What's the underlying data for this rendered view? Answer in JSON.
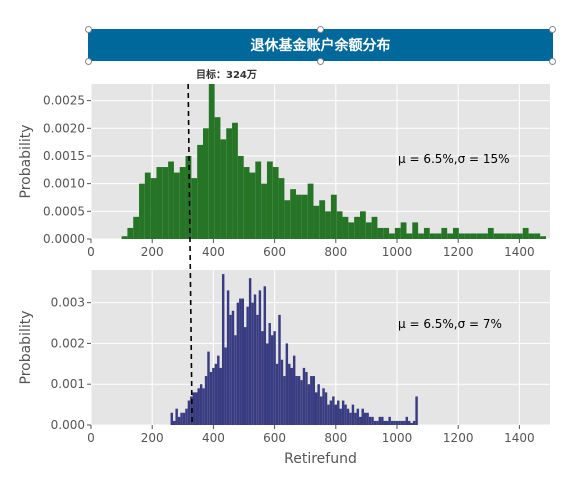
{
  "banner": {
    "title": "退休基金账户余额分布"
  },
  "target_note": "目标：324万",
  "colors": {
    "banner": "#00689a",
    "top_bars": "#267426",
    "bottom_bars": "#3a3c82",
    "plot_bg": "#e5e5e5",
    "target_line": "#000000"
  },
  "chart_data": [
    {
      "type": "bar",
      "title": "",
      "xlabel": "",
      "ylabel": "Probability",
      "annotation": "μ = 6.5%,σ = 15%",
      "xlim": [
        0,
        1500
      ],
      "ylim": [
        0,
        0.0028
      ],
      "xticks": [
        0,
        200,
        400,
        600,
        800,
        1000,
        1200,
        1400
      ],
      "yticks": [
        0,
        0.0005,
        0.001,
        0.0015,
        0.002,
        0.0025
      ],
      "ytick_labels": [
        "0.0000",
        "0.0005",
        "0.0010",
        "0.0015",
        "0.0020",
        "0.0025"
      ],
      "grid": true,
      "target_x": 324,
      "bin_width": 19,
      "x": [
        100,
        119,
        138,
        157,
        176,
        195,
        214,
        233,
        252,
        271,
        290,
        309,
        328,
        347,
        366,
        385,
        404,
        423,
        442,
        461,
        480,
        499,
        518,
        537,
        556,
        575,
        594,
        613,
        632,
        651,
        670,
        689,
        708,
        727,
        746,
        765,
        784,
        803,
        822,
        841,
        860,
        879,
        898,
        917,
        936,
        955,
        974,
        993,
        1012,
        1031,
        1050,
        1069,
        1088,
        1107,
        1126,
        1145,
        1164,
        1183,
        1202,
        1221,
        1240,
        1259,
        1278,
        1297,
        1316,
        1335,
        1354,
        1373,
        1392,
        1411,
        1430,
        1449,
        1468
      ],
      "values": [
        5e-05,
        0.0002,
        0.0004,
        0.001,
        0.0012,
        0.0011,
        0.0013,
        0.0013,
        0.0014,
        0.0012,
        0.0013,
        0.0015,
        0.0011,
        0.0017,
        0.002,
        0.0028,
        0.0022,
        0.0018,
        0.002,
        0.0021,
        0.0015,
        0.0013,
        0.0012,
        0.0014,
        0.001,
        0.0014,
        0.0013,
        0.0011,
        0.0007,
        0.0009,
        0.0008,
        0.0008,
        0.001,
        0.0006,
        0.0007,
        0.0005,
        0.0008,
        0.0005,
        0.0004,
        0.0003,
        0.0004,
        0.0005,
        0.0003,
        0.0004,
        0.0002,
        0.0002,
        0.0001,
        0.0002,
        0.0003,
        0.0001,
        0.0003,
        0.0001,
        0.0002,
        0.0001,
        0.0001,
        0.0002,
        0.0001,
        0.0002,
        0.0001,
        0.0001,
        0.0001,
        0.0001,
        0.0001,
        0.0002,
        0.0001,
        0.0001,
        0.0001,
        0.0001,
        0.0001,
        0.0002,
        0.0001,
        0.0001,
        5e-05
      ]
    },
    {
      "type": "bar",
      "title": "",
      "xlabel": "Retirefund",
      "ylabel": "Probability",
      "annotation": "μ = 6.5%,σ = 7%",
      "xlim": [
        0,
        1500
      ],
      "ylim": [
        0,
        0.0038
      ],
      "xticks": [
        0,
        200,
        400,
        600,
        800,
        1000,
        1200,
        1400
      ],
      "yticks": [
        0,
        0.001,
        0.002,
        0.003
      ],
      "ytick_labels": [
        "0.000",
        "0.001",
        "0.002",
        "0.003"
      ],
      "grid": true,
      "target_x": 324,
      "bin_width": 8,
      "x": [
        260,
        268,
        276,
        284,
        292,
        300,
        308,
        316,
        324,
        332,
        340,
        348,
        356,
        364,
        372,
        380,
        388,
        396,
        404,
        412,
        420,
        428,
        436,
        444,
        452,
        460,
        468,
        476,
        484,
        492,
        500,
        508,
        516,
        524,
        532,
        540,
        548,
        556,
        564,
        572,
        580,
        588,
        596,
        604,
        612,
        620,
        628,
        636,
        644,
        652,
        660,
        668,
        676,
        684,
        692,
        700,
        708,
        716,
        724,
        732,
        740,
        748,
        756,
        764,
        772,
        780,
        788,
        796,
        804,
        812,
        820,
        828,
        836,
        844,
        852,
        860,
        868,
        876,
        884,
        892,
        900,
        908,
        916,
        924,
        932,
        940,
        948,
        956,
        964,
        972,
        980,
        988,
        996,
        1004,
        1012,
        1020,
        1028,
        1036,
        1044,
        1052,
        1060
      ],
      "values": [
        0.0003,
        0.0001,
        0.0004,
        0.0002,
        0.0003,
        0.0003,
        0.0004,
        0.0006,
        0.0007,
        0.0008,
        0.0008,
        0.0009,
        0.001,
        0.0009,
        0.0012,
        0.0018,
        0.0013,
        0.0014,
        0.0015,
        0.0017,
        0.0014,
        0.0037,
        0.0019,
        0.0033,
        0.0027,
        0.0028,
        0.0022,
        0.003,
        0.0031,
        0.0031,
        0.0024,
        0.0029,
        0.0036,
        0.003,
        0.0032,
        0.0027,
        0.0033,
        0.0023,
        0.0034,
        0.002,
        0.0025,
        0.0022,
        0.0023,
        0.0015,
        0.0027,
        0.0016,
        0.0012,
        0.002,
        0.0015,
        0.0014,
        0.0017,
        0.0012,
        0.0012,
        0.0011,
        0.0014,
        0.0013,
        0.001,
        0.0012,
        0.0012,
        0.0008,
        0.001,
        0.0007,
        0.0009,
        0.0008,
        0.0005,
        0.0006,
        0.0007,
        0.0005,
        0.0006,
        0.0004,
        0.0006,
        0.0005,
        0.0004,
        0.0003,
        0.0005,
        0.0003,
        0.0004,
        0.0002,
        0.0004,
        0.0003,
        0.0003,
        0.0002,
        0.0002,
        0.0001,
        0.0001,
        0.0002,
        0.0002,
        0.0001,
        0.0001,
        0.0002,
        0.0001,
        0.0001,
        0.0001,
        0.0001,
        0.0001,
        0.0001,
        0.0002,
        0.0001,
        5e-05,
        0.0001,
        0.0007
      ]
    }
  ]
}
